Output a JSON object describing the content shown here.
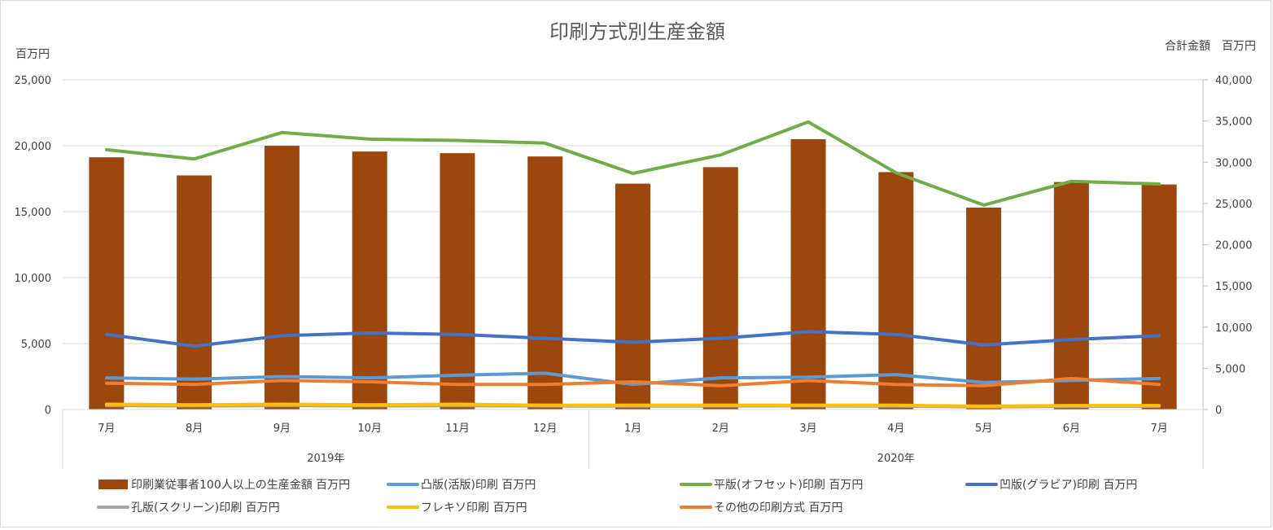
{
  "chart_data": {
    "type": "bar",
    "title": "印刷方式別生産金額",
    "y_left_label": "百万円",
    "y_right_label": "合計金額　百万円",
    "y_left_lim": [
      0,
      25000
    ],
    "y_right_lim": [
      0,
      40000
    ],
    "y_left_ticks": [
      "0",
      "5,000",
      "10,000",
      "15,000",
      "20,000",
      "25,000"
    ],
    "y_right_ticks": [
      "0",
      "5,000",
      "10,000",
      "15,000",
      "20,000",
      "25,000",
      "30,000",
      "35,000",
      "40,000"
    ],
    "categories": [
      "7月",
      "8月",
      "9月",
      "10月",
      "11月",
      "12月",
      "1月",
      "2月",
      "3月",
      "4月",
      "5月",
      "6月",
      "7月"
    ],
    "year_groups": [
      {
        "label": "2019年",
        "count": 6
      },
      {
        "label": "2020年",
        "count": 7
      }
    ],
    "grid": true,
    "legend_position": "bottom",
    "series": [
      {
        "name": "印刷業従事者100人以上の生産金額 百万円",
        "kind": "bar",
        "axis": "right",
        "color": "#9c470e",
        "values": [
          30600,
          28400,
          32000,
          31300,
          31100,
          30700,
          27400,
          29400,
          32800,
          28800,
          24500,
          27600,
          27300
        ]
      },
      {
        "name": "凸版(活版)印刷 百万円",
        "kind": "line",
        "axis": "left",
        "color": "#5b9bd5",
        "values": [
          2400,
          2300,
          2500,
          2400,
          2600,
          2750,
          1900,
          2400,
          2450,
          2650,
          2050,
          2200,
          2350
        ]
      },
      {
        "name": "平版(オフセット)印刷 百万円",
        "kind": "line",
        "axis": "left",
        "color": "#70ad47",
        "values": [
          19700,
          19000,
          21000,
          20500,
          20400,
          20200,
          17900,
          19300,
          21800,
          17950,
          15500,
          17300,
          17100
        ]
      },
      {
        "name": "凹版(グラビア)印刷 百万円",
        "kind": "line",
        "axis": "left",
        "color": "#4472c4",
        "values": [
          5700,
          4800,
          5600,
          5800,
          5700,
          5400,
          5100,
          5400,
          5900,
          5700,
          4900,
          5300,
          5600
        ]
      },
      {
        "name": "孔版(スクリーン)印刷 百万円",
        "kind": "line",
        "axis": "left",
        "color": "#a5a5a5",
        "values": [
          300,
          280,
          300,
          280,
          290,
          270,
          260,
          270,
          280,
          260,
          200,
          240,
          250
        ]
      },
      {
        "name": "フレキソ印刷 百万円",
        "kind": "line",
        "axis": "left",
        "color": "#ffc000",
        "values": [
          400,
          350,
          400,
          350,
          400,
          320,
          320,
          330,
          330,
          320,
          250,
          300,
          300
        ]
      },
      {
        "name": "その他の印刷方式 百万円",
        "kind": "line",
        "axis": "left",
        "color": "#ed7d31",
        "values": [
          2000,
          1900,
          2200,
          2100,
          1900,
          1900,
          2100,
          1800,
          2200,
          1900,
          1800,
          2350,
          1900
        ]
      }
    ]
  }
}
